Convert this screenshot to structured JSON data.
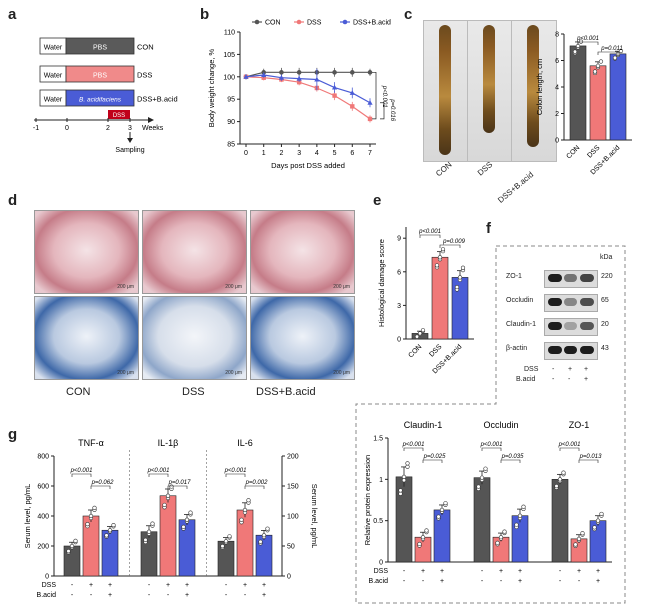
{
  "panels": {
    "a": "a",
    "b": "b",
    "c": "c",
    "d": "d",
    "e": "e",
    "f": "f",
    "g": "g"
  },
  "panel_a": {
    "rows": [
      {
        "water": "Water",
        "treat": "PBS",
        "group": "CON",
        "color": "#5a5a5a"
      },
      {
        "water": "Water",
        "treat": "PBS",
        "group": "DSS",
        "color": "#f08a8a"
      },
      {
        "water": "Water",
        "treat": "B. acidifaciens",
        "group": "DSS+B.acid",
        "color": "#4a5cd6"
      }
    ],
    "dss_label": "DSS",
    "ticks": [
      "-1",
      "0",
      "2",
      "3"
    ],
    "weeks": "Weeks",
    "sampling": "Sampling"
  },
  "chart_data": [
    {
      "type": "line",
      "panel": "b",
      "x": [
        0,
        1,
        2,
        3,
        4,
        5,
        6,
        7
      ],
      "series": [
        {
          "name": "CON",
          "color": "#555555",
          "values": [
            100,
            101,
            101,
            101,
            101,
            101,
            101,
            101
          ],
          "errors": [
            0.6,
            0.8,
            1,
            1,
            1,
            1,
            1,
            0.8
          ]
        },
        {
          "name": "DSS",
          "color": "#f07878",
          "values": [
            100,
            99.8,
            99.4,
            98.8,
            97.5,
            95.8,
            93.4,
            90.6
          ],
          "errors": [
            0.5,
            0.6,
            0.6,
            0.7,
            0.8,
            1,
            1,
            0.8
          ]
        },
        {
          "name": "DSS+B.acid",
          "color": "#4a5cd6",
          "values": [
            100,
            100.4,
            99.8,
            99.6,
            99.4,
            97.6,
            96.4,
            94.2
          ],
          "errors": [
            0.5,
            0.6,
            0.7,
            0.7,
            2.4,
            1.2,
            1.2,
            1
          ]
        }
      ],
      "xlabel": "Days post DSS added",
      "ylabel": "Body weight change, %",
      "ylim": [
        85,
        110
      ],
      "yticks": [
        85,
        90,
        95,
        100,
        105,
        110
      ],
      "annotations": [
        "p<0.001",
        "p=0.016"
      ]
    },
    {
      "type": "bar",
      "panel": "c",
      "categories": [
        "CON",
        "DSS",
        "DSS+B.acid"
      ],
      "values": [
        7.1,
        5.6,
        6.5
      ],
      "errors": [
        0.3,
        0.3,
        0.2
      ],
      "ylabel": "Colon length, cm",
      "ylim": [
        0,
        8
      ],
      "yticks": [
        0,
        2,
        4,
        6,
        8
      ],
      "annotations": [
        "p<0.001",
        "p=0.011"
      ]
    },
    {
      "type": "bar",
      "panel": "e",
      "categories": [
        "CON",
        "DSS",
        "DSS+B.acid"
      ],
      "values": [
        0.5,
        7.3,
        5.5
      ],
      "errors": [
        0.2,
        0.5,
        0.6
      ],
      "ylabel": "Histological damage score",
      "ylim": [
        0,
        10
      ],
      "yticks": [
        0,
        3,
        6,
        9
      ],
      "annotations": [
        "p<0.001",
        "p=0.009"
      ]
    },
    {
      "type": "bar",
      "panel": "g",
      "groups": [
        {
          "name": "TNF-α",
          "values": [
            200,
            400,
            305
          ],
          "errors": [
            25,
            40,
            25
          ],
          "annotations": [
            "p<0.001",
            "p=0.062"
          ]
        },
        {
          "name": "IL-1β",
          "values": [
            295,
            535,
            375
          ],
          "errors": [
            40,
            45,
            35
          ],
          "annotations": [
            "p<0.001",
            "p=0.017"
          ]
        },
        {
          "name": "IL-6",
          "values": [
            58,
            110,
            68
          ],
          "errors": [
            6,
            12,
            8
          ],
          "axis": "right",
          "annotations": [
            "p<0.001",
            "p=0.002"
          ]
        }
      ],
      "ylabel_left": "Serum level, pg/mL",
      "ylabel_right": "Serum level, pg/mL",
      "ylim_left": [
        0,
        800
      ],
      "yticks_left": [
        0,
        200,
        400,
        600,
        800
      ],
      "ylim_right": [
        0,
        200
      ],
      "yticks_right": [
        0,
        50,
        100,
        150,
        200
      ],
      "row_labels": [
        "DSS",
        "B.acid"
      ],
      "signs": [
        [
          "-",
          "+",
          "+"
        ],
        [
          "-",
          "-",
          "+"
        ]
      ]
    },
    {
      "type": "bar",
      "panel": "f",
      "groups": [
        {
          "name": "Claudin-1",
          "values": [
            1.03,
            0.3,
            0.63
          ],
          "errors": [
            0.12,
            0.06,
            0.06
          ],
          "annotations": [
            "p<0.001",
            "p=0.025"
          ]
        },
        {
          "name": "Occludin",
          "values": [
            1.02,
            0.3,
            0.56
          ],
          "errors": [
            0.08,
            0.05,
            0.08
          ],
          "annotations": [
            "p<0.001",
            "p=0.035"
          ]
        },
        {
          "name": "ZO-1",
          "values": [
            1.0,
            0.28,
            0.5
          ],
          "errors": [
            0.06,
            0.05,
            0.06
          ],
          "annotations": [
            "p<0.001",
            "p=0.013"
          ]
        }
      ],
      "ylabel": "Relative protein expression",
      "ylim": [
        0,
        1.5
      ],
      "yticks": [
        0,
        0.5,
        1.0,
        1.5
      ],
      "row_labels": [
        "DSS",
        "B.acid"
      ],
      "signs": [
        [
          "-",
          "+",
          "+"
        ],
        [
          "-",
          "-",
          "+"
        ]
      ]
    }
  ],
  "colors": {
    "con": "#555555",
    "dss": "#f07878",
    "bacid": "#4a5cd6"
  },
  "panel_c": {
    "labels": [
      "CON",
      "DSS",
      "DSS+B.acid"
    ]
  },
  "panel_d": {
    "labels": [
      "CON",
      "DSS",
      "DSS+B.acid"
    ],
    "scalebar": "200 μm"
  },
  "panel_f": {
    "kda": "kDa",
    "blots": [
      {
        "name": "ZO-1",
        "kda": "220"
      },
      {
        "name": "Occludin",
        "kda": "65"
      },
      {
        "name": "Claudin-1",
        "kda": "20"
      },
      {
        "name": "β-actin",
        "kda": "43"
      }
    ],
    "row_labels": [
      "DSS",
      "B.acid"
    ],
    "signs": [
      [
        "-",
        "+",
        "+"
      ],
      [
        "-",
        "-",
        "+"
      ]
    ]
  }
}
